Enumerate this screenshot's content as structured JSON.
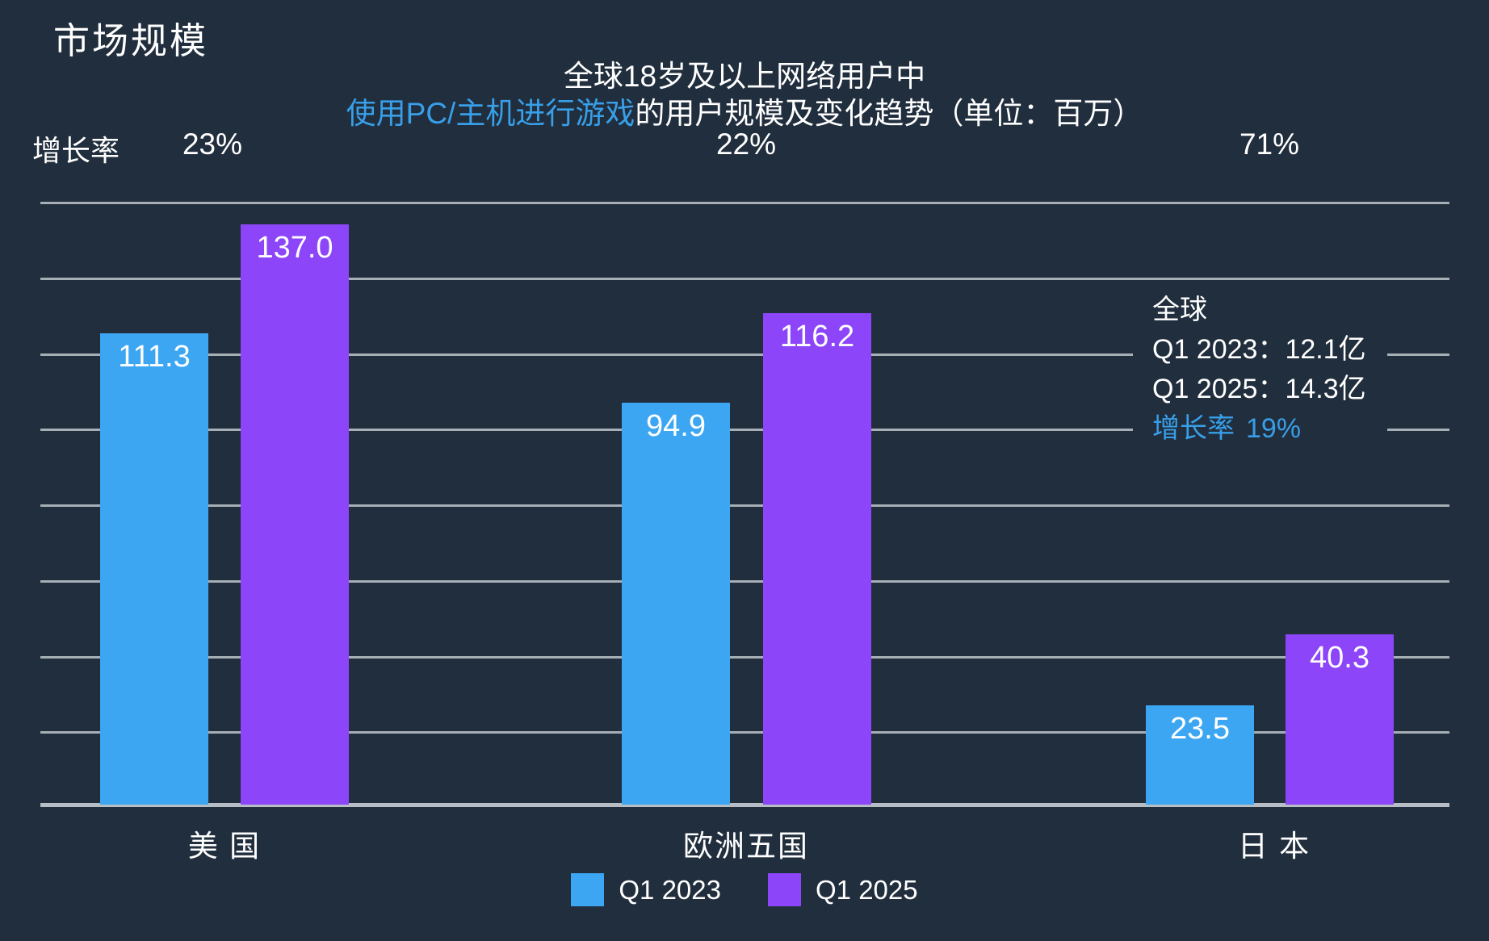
{
  "page": {
    "background": "#212e3d"
  },
  "header": {
    "title": "市场规模"
  },
  "subtitle": {
    "line1": "全球18岁及以上网络用户中",
    "line2_highlight": "使用PC/主机进行游戏",
    "line2_rest": "的用户规模及变化趋势（单位：百万）",
    "highlight_color": "#389fe8"
  },
  "growth_row": {
    "label": "增长率"
  },
  "chart_data": {
    "type": "bar",
    "title": "市场规模",
    "subtitle": "全球18岁及以上网络用户中使用PC/主机进行游戏的用户规模及变化趋势（单位：百万）",
    "unit": "百万",
    "categories": [
      "美 国",
      "欧洲五国",
      "日 本"
    ],
    "series": [
      {
        "name": "Q1 2023",
        "color": "#3da6f3",
        "values": [
          111.3,
          94.9,
          23.5
        ],
        "labels": [
          "111.3",
          "94.9",
          "23.5"
        ]
      },
      {
        "name": "Q1 2025",
        "color": "#8c45f8",
        "values": [
          137.0,
          116.2,
          40.3
        ],
        "labels": [
          "137.0",
          "116.2",
          "40.3"
        ]
      }
    ],
    "growth_rates": [
      "23%",
      "22%",
      "71%"
    ],
    "ylim": [
      0,
      143
    ],
    "grid": true,
    "gridline_count": 9,
    "legend_position": "bottom"
  },
  "annotation": {
    "title": "全球",
    "line_2023": "Q1 2023：12.1亿",
    "line_2025": "Q1 2025：14.3亿",
    "growth_label": "增长率",
    "growth_value": "19%",
    "growth_color": "#389fe8"
  },
  "legend": {
    "items": [
      {
        "label": "Q1 2023",
        "color": "#3da6f3"
      },
      {
        "label": "Q1 2025",
        "color": "#8c45f8"
      }
    ]
  }
}
